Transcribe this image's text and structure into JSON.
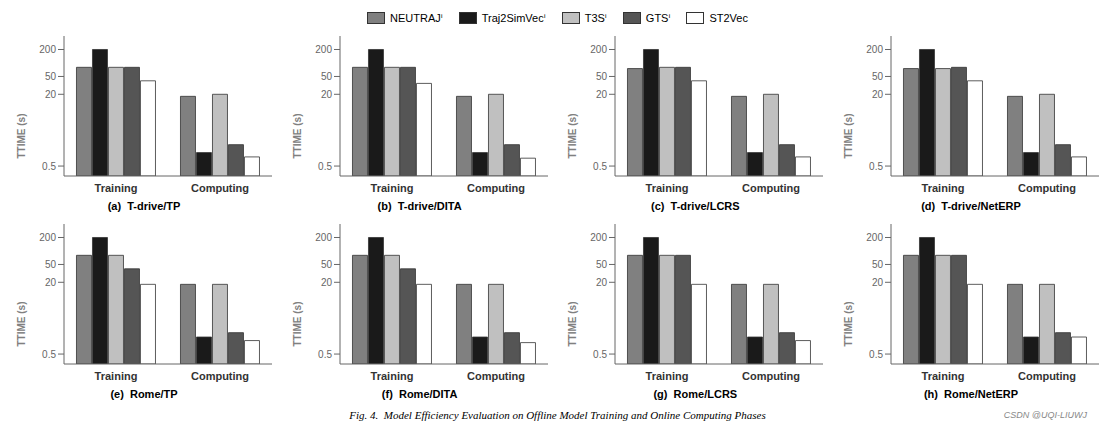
{
  "legend": "top",
  "annotations": [
    "Fig. 4.  Model Efficiency Evaluation on Offline Model Training and Online Computing Phases",
    "CSDN @UQI-LIUWJ"
  ],
  "chart_data": [
    {
      "type": "bar",
      "title": "(a)  T-drive/TP",
      "y_label": "TTIME (s)",
      "categories": [
        "Training",
        "Computing"
      ],
      "log": "y",
      "grid": false,
      "ylim": [
        0.3,
        400
      ],
      "yticks": [
        0.5,
        20,
        50,
        200
      ],
      "series": [
        {
          "name": "NEUTRAJⁱ",
          "color": "#808080",
          "values": [
            80,
            18
          ]
        },
        {
          "name": "Traj2SimVecⁱ",
          "color": "#1a1a1a",
          "values": [
            200,
            1.0
          ]
        },
        {
          "name": "T3Sⁱ",
          "color": "#c0c0c0",
          "values": [
            80,
            20
          ]
        },
        {
          "name": "GTSⁱ",
          "color": "#555555",
          "values": [
            80,
            1.5
          ]
        },
        {
          "name": "ST2Vec",
          "color": "#ffffff",
          "values": [
            40,
            0.8
          ]
        }
      ]
    },
    {
      "type": "bar",
      "title": "(b)  T-drive/DITA",
      "y_label": "TTIME (s)",
      "categories": [
        "Training",
        "Computing"
      ],
      "log": "y",
      "grid": false,
      "ylim": [
        0.3,
        400
      ],
      "yticks": [
        0.5,
        20,
        50,
        200
      ],
      "series": [
        {
          "name": "NEUTRAJⁱ",
          "color": "#808080",
          "values": [
            80,
            18
          ]
        },
        {
          "name": "Traj2SimVecⁱ",
          "color": "#1a1a1a",
          "values": [
            200,
            1.0
          ]
        },
        {
          "name": "T3Sⁱ",
          "color": "#c0c0c0",
          "values": [
            80,
            20
          ]
        },
        {
          "name": "GTSⁱ",
          "color": "#555555",
          "values": [
            80,
            1.5
          ]
        },
        {
          "name": "ST2Vec",
          "color": "#ffffff",
          "values": [
            35,
            0.75
          ]
        }
      ]
    },
    {
      "type": "bar",
      "title": "(c)  T-drive/LCRS",
      "y_label": "TTIME (s)",
      "categories": [
        "Training",
        "Computing"
      ],
      "log": "y",
      "grid": false,
      "ylim": [
        0.3,
        400
      ],
      "yticks": [
        0.5,
        20,
        50,
        200
      ],
      "series": [
        {
          "name": "NEUTRAJⁱ",
          "color": "#808080",
          "values": [
            75,
            18
          ]
        },
        {
          "name": "Traj2SimVecⁱ",
          "color": "#1a1a1a",
          "values": [
            200,
            1.0
          ]
        },
        {
          "name": "T3Sⁱ",
          "color": "#c0c0c0",
          "values": [
            80,
            20
          ]
        },
        {
          "name": "GTSⁱ",
          "color": "#555555",
          "values": [
            80,
            1.5
          ]
        },
        {
          "name": "ST2Vec",
          "color": "#ffffff",
          "values": [
            40,
            0.8
          ]
        }
      ]
    },
    {
      "type": "bar",
      "title": "(d)  T-drive/NetERP",
      "y_label": "TTIME (s)",
      "categories": [
        "Training",
        "Computing"
      ],
      "log": "y",
      "grid": false,
      "ylim": [
        0.3,
        400
      ],
      "yticks": [
        0.5,
        20,
        50,
        200
      ],
      "series": [
        {
          "name": "NEUTRAJⁱ",
          "color": "#808080",
          "values": [
            75,
            18
          ]
        },
        {
          "name": "Traj2SimVecⁱ",
          "color": "#1a1a1a",
          "values": [
            200,
            1.0
          ]
        },
        {
          "name": "T3Sⁱ",
          "color": "#c0c0c0",
          "values": [
            75,
            20
          ]
        },
        {
          "name": "GTSⁱ",
          "color": "#555555",
          "values": [
            80,
            1.5
          ]
        },
        {
          "name": "ST2Vec",
          "color": "#ffffff",
          "values": [
            40,
            0.8
          ]
        }
      ]
    },
    {
      "type": "bar",
      "title": "(e)  Rome/TP",
      "y_label": "TTIME (s)",
      "categories": [
        "Training",
        "Computing"
      ],
      "log": "y",
      "grid": false,
      "ylim": [
        0.3,
        400
      ],
      "yticks": [
        0.5,
        20,
        50,
        200
      ],
      "series": [
        {
          "name": "NEUTRAJⁱ",
          "color": "#808080",
          "values": [
            80,
            18
          ]
        },
        {
          "name": "Traj2SimVecⁱ",
          "color": "#1a1a1a",
          "values": [
            200,
            1.2
          ]
        },
        {
          "name": "T3Sⁱ",
          "color": "#c0c0c0",
          "values": [
            80,
            18
          ]
        },
        {
          "name": "GTSⁱ",
          "color": "#555555",
          "values": [
            40,
            1.5
          ]
        },
        {
          "name": "ST2Vec",
          "color": "#ffffff",
          "values": [
            18,
            1.0
          ]
        }
      ]
    },
    {
      "type": "bar",
      "title": "(f)  Rome/DITA",
      "y_label": "TTIME (s)",
      "categories": [
        "Training",
        "Computing"
      ],
      "log": "y",
      "grid": false,
      "ylim": [
        0.3,
        400
      ],
      "yticks": [
        0.5,
        20,
        50,
        200
      ],
      "series": [
        {
          "name": "NEUTRAJⁱ",
          "color": "#808080",
          "values": [
            80,
            18
          ]
        },
        {
          "name": "Traj2SimVecⁱ",
          "color": "#1a1a1a",
          "values": [
            200,
            1.2
          ]
        },
        {
          "name": "T3Sⁱ",
          "color": "#c0c0c0",
          "values": [
            80,
            18
          ]
        },
        {
          "name": "GTSⁱ",
          "color": "#555555",
          "values": [
            40,
            1.5
          ]
        },
        {
          "name": "ST2Vec",
          "color": "#ffffff",
          "values": [
            18,
            0.9
          ]
        }
      ]
    },
    {
      "type": "bar",
      "title": "(g)  Rome/LCRS",
      "y_label": "TTIME (s)",
      "categories": [
        "Training",
        "Computing"
      ],
      "log": "y",
      "grid": false,
      "ylim": [
        0.3,
        400
      ],
      "yticks": [
        0.5,
        20,
        50,
        200
      ],
      "series": [
        {
          "name": "NEUTRAJⁱ",
          "color": "#808080",
          "values": [
            80,
            18
          ]
        },
        {
          "name": "Traj2SimVecⁱ",
          "color": "#1a1a1a",
          "values": [
            200,
            1.2
          ]
        },
        {
          "name": "T3Sⁱ",
          "color": "#c0c0c0",
          "values": [
            80,
            18
          ]
        },
        {
          "name": "GTSⁱ",
          "color": "#555555",
          "values": [
            80,
            1.5
          ]
        },
        {
          "name": "ST2Vec",
          "color": "#ffffff",
          "values": [
            18,
            1.0
          ]
        }
      ]
    },
    {
      "type": "bar",
      "title": "(h)  Rome/NetERP",
      "y_label": "TTIME (s)",
      "categories": [
        "Training",
        "Computing"
      ],
      "log": "y",
      "grid": false,
      "ylim": [
        0.3,
        400
      ],
      "yticks": [
        0.5,
        20,
        50,
        200
      ],
      "series": [
        {
          "name": "NEUTRAJⁱ",
          "color": "#808080",
          "values": [
            80,
            18
          ]
        },
        {
          "name": "Traj2SimVecⁱ",
          "color": "#1a1a1a",
          "values": [
            200,
            1.2
          ]
        },
        {
          "name": "T3Sⁱ",
          "color": "#c0c0c0",
          "values": [
            80,
            18
          ]
        },
        {
          "name": "GTSⁱ",
          "color": "#555555",
          "values": [
            80,
            1.5
          ]
        },
        {
          "name": "ST2Vec",
          "color": "#ffffff",
          "values": [
            18,
            1.2
          ]
        }
      ]
    }
  ]
}
